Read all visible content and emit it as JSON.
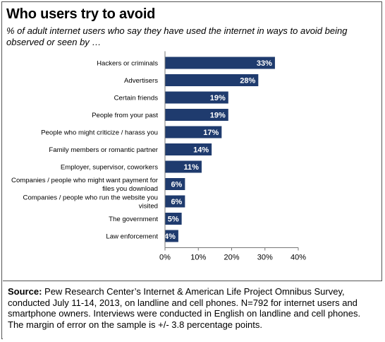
{
  "title": "Who users try to avoid",
  "subtitle": "% of adult internet users who say they have used the internet in ways to avoid being observed or seen by …",
  "colors": {
    "bar": "#1f3b6e",
    "label": "#ffffff",
    "axis": "#777777"
  },
  "chart_data": {
    "type": "bar",
    "orientation": "horizontal",
    "categories": [
      "Hackers or criminals",
      "Advertisers",
      "Certain friends",
      "People from your past",
      "People who might criticize / harass you",
      "Family members or romantic partner",
      "Employer, supervisor, coworkers",
      "Companies / people who might want payment for files you download",
      "Companies / people who run the website you visited",
      "The government",
      "Law enforcement"
    ],
    "category_lines": [
      [
        "Hackers or criminals"
      ],
      [
        "Advertisers"
      ],
      [
        "Certain friends"
      ],
      [
        "People from your past"
      ],
      [
        "People who might criticize / harass you"
      ],
      [
        "Family members or romantic partner"
      ],
      [
        "Employer, supervisor, coworkers"
      ],
      [
        "Companies / people who might want payment for",
        "files you download"
      ],
      [
        "Companies / people who run the website you",
        "visited"
      ],
      [
        "The government"
      ],
      [
        "Law enforcement"
      ]
    ],
    "values": [
      33,
      28,
      19,
      19,
      17,
      14,
      11,
      6,
      6,
      5,
      4
    ],
    "value_labels": [
      "33%",
      "28%",
      "19%",
      "19%",
      "17%",
      "14%",
      "11%",
      "6%",
      "6%",
      "5%",
      "4%"
    ],
    "xlim": [
      0,
      40
    ],
    "xticks": [
      0,
      10,
      20,
      30,
      40
    ],
    "xtick_labels": [
      "0%",
      "10%",
      "20%",
      "30%",
      "40%"
    ],
    "grid": false
  },
  "footer": {
    "source_label": "Source:",
    "source_text": " Pew Research Center’s Internet & American Life Project Omnibus Survey, conducted July 11-14, 2013, on landline and cell phones. N=792 for internet users and smartphone owners. Interviews were conducted in English on landline and cell phones. The margin of error on the sample is +/- 3.8 percentage points."
  }
}
